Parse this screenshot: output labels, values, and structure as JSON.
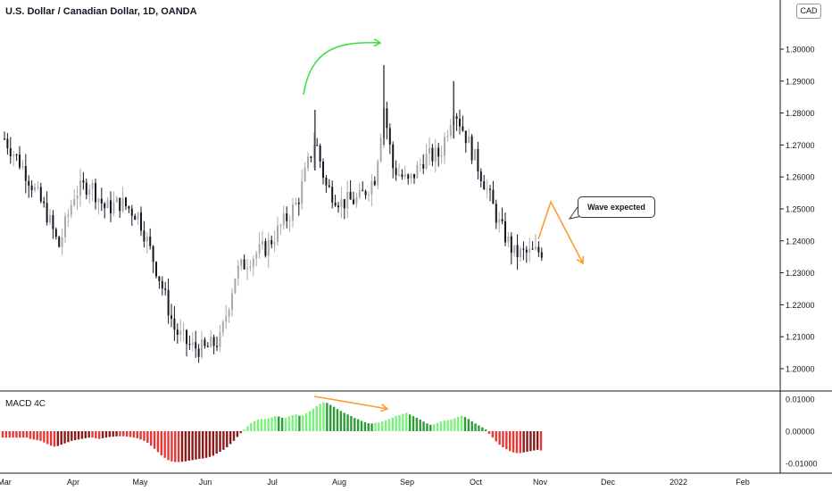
{
  "header": {
    "title": "U.S. Dollar / Canadian Dollar, 1D, OANDA",
    "currency": "CAD"
  },
  "annotations": {
    "wave_label": "Wave expected"
  },
  "chart_data": [
    {
      "type": "candlestick",
      "title": "U.S. Dollar / Canadian Dollar, 1D, OANDA",
      "price_axis_ticks": [
        "1.30000",
        "1.29000",
        "1.28000",
        "1.27000",
        "1.26000",
        "1.25000",
        "1.24000",
        "1.23000",
        "1.22000",
        "1.21000",
        "1.20000"
      ],
      "time_axis_ticks": [
        "Mar",
        "Apr",
        "May",
        "Jun",
        "Jul",
        "Aug",
        "Sep",
        "Oct",
        "Nov",
        "Dec",
        "2022",
        "Feb"
      ],
      "ylim": [
        1.195,
        1.31
      ],
      "colors": {
        "up": "#a9a9a9",
        "down": "#131722"
      },
      "close_path": [
        {
          "x": "2021-03-01",
          "y": 1.272
        },
        {
          "x": "2021-03-10",
          "y": 1.262
        },
        {
          "x": "2021-03-20",
          "y": 1.248
        },
        {
          "x": "2021-03-25",
          "y": 1.238
        },
        {
          "x": "2021-04-01",
          "y": 1.255
        },
        {
          "x": "2021-04-08",
          "y": 1.258
        },
        {
          "x": "2021-04-15",
          "y": 1.25
        },
        {
          "x": "2021-04-22",
          "y": 1.252
        },
        {
          "x": "2021-04-30",
          "y": 1.248
        },
        {
          "x": "2021-05-03",
          "y": 1.242
        },
        {
          "x": "2021-05-10",
          "y": 1.228
        },
        {
          "x": "2021-05-17",
          "y": 1.212
        },
        {
          "x": "2021-05-24",
          "y": 1.207
        },
        {
          "x": "2021-05-31",
          "y": 1.206
        },
        {
          "x": "2021-06-07",
          "y": 1.209
        },
        {
          "x": "2021-06-14",
          "y": 1.23
        },
        {
          "x": "2021-06-21",
          "y": 1.235
        },
        {
          "x": "2021-06-28",
          "y": 1.238
        },
        {
          "x": "2021-07-05",
          "y": 1.245
        },
        {
          "x": "2021-07-12",
          "y": 1.252
        },
        {
          "x": "2021-07-20",
          "y": 1.272
        },
        {
          "x": "2021-07-25",
          "y": 1.257
        },
        {
          "x": "2021-08-01",
          "y": 1.252
        },
        {
          "x": "2021-08-09",
          "y": 1.253
        },
        {
          "x": "2021-08-16",
          "y": 1.26
        },
        {
          "x": "2021-08-20",
          "y": 1.282
        },
        {
          "x": "2021-08-24",
          "y": 1.263
        },
        {
          "x": "2021-08-31",
          "y": 1.258
        },
        {
          "x": "2021-09-07",
          "y": 1.266
        },
        {
          "x": "2021-09-14",
          "y": 1.267
        },
        {
          "x": "2021-09-20",
          "y": 1.282
        },
        {
          "x": "2021-09-27",
          "y": 1.27
        },
        {
          "x": "2021-10-04",
          "y": 1.258
        },
        {
          "x": "2021-10-11",
          "y": 1.245
        },
        {
          "x": "2021-10-18",
          "y": 1.236
        },
        {
          "x": "2021-10-25",
          "y": 1.236
        },
        {
          "x": "2021-11-01",
          "y": 1.237
        }
      ]
    },
    {
      "type": "bar",
      "title": "MACD 4C",
      "value_axis_ticks": [
        "0.01000",
        "0.00000",
        "-0.01000"
      ],
      "ylim": [
        -0.0115,
        0.0115
      ],
      "colors": {
        "positive_rising": "#7cf07c",
        "positive_falling": "#2e9b36",
        "negative_falling": "#e53935",
        "negative_rising": "#8b1a1a"
      },
      "series": [
        {
          "values": [
            -0.002,
            -0.002,
            -0.002,
            -0.002,
            -0.002,
            -0.002,
            -0.002,
            -0.002,
            -0.0024,
            -0.0026,
            -0.0028,
            -0.003,
            -0.0035,
            -0.004,
            -0.0045,
            -0.0048,
            -0.0046,
            -0.0042,
            -0.0038,
            -0.0034,
            -0.003,
            -0.0028,
            -0.0026,
            -0.0024,
            -0.0022,
            -0.002,
            -0.002,
            -0.0022,
            -0.0024,
            -0.0022,
            -0.002,
            -0.0018,
            -0.0017,
            -0.0016,
            -0.0016,
            -0.0016,
            -0.0017,
            -0.0018,
            -0.002,
            -0.0022,
            -0.0026,
            -0.003,
            -0.0036,
            -0.0045,
            -0.0055,
            -0.0065,
            -0.0075,
            -0.0083,
            -0.009,
            -0.0094,
            -0.0096,
            -0.0096,
            -0.0095,
            -0.0094,
            -0.0092,
            -0.009,
            -0.0088,
            -0.0086,
            -0.0085,
            -0.0083,
            -0.008,
            -0.0076,
            -0.007,
            -0.0064,
            -0.0058,
            -0.005,
            -0.004,
            -0.003,
            -0.0018,
            -0.0006,
            0.0005,
            0.0015,
            0.0025,
            0.0032,
            0.0036,
            0.0038,
            0.0038,
            0.004,
            0.0043,
            0.0047,
            0.0046,
            0.0042,
            0.0042,
            0.0046,
            0.005,
            0.0052,
            0.0048,
            0.005,
            0.0056,
            0.0062,
            0.007,
            0.0078,
            0.0085,
            0.009,
            0.0088,
            0.0082,
            0.0076,
            0.0069,
            0.0063,
            0.0057,
            0.0052,
            0.0047,
            0.0041,
            0.0037,
            0.0032,
            0.0028,
            0.0025,
            0.0024,
            0.0026,
            0.0027,
            0.003,
            0.0034,
            0.0038,
            0.0042,
            0.0047,
            0.005,
            0.0054,
            0.0057,
            0.0052,
            0.0047,
            0.0042,
            0.0036,
            0.003,
            0.0024,
            0.002,
            0.0022,
            0.0026,
            0.003,
            0.0033,
            0.0034,
            0.0036,
            0.004,
            0.0045,
            0.0048,
            0.0044,
            0.0038,
            0.0031,
            0.0024,
            0.0018,
            0.0012,
            0.0005,
            -0.0008,
            -0.002,
            -0.0032,
            -0.0042,
            -0.005,
            -0.0056,
            -0.0062,
            -0.0066,
            -0.0068,
            -0.0068,
            -0.0066,
            -0.0064,
            -0.0062,
            -0.006,
            -0.0058,
            -0.006
          ]
        }
      ]
    }
  ]
}
